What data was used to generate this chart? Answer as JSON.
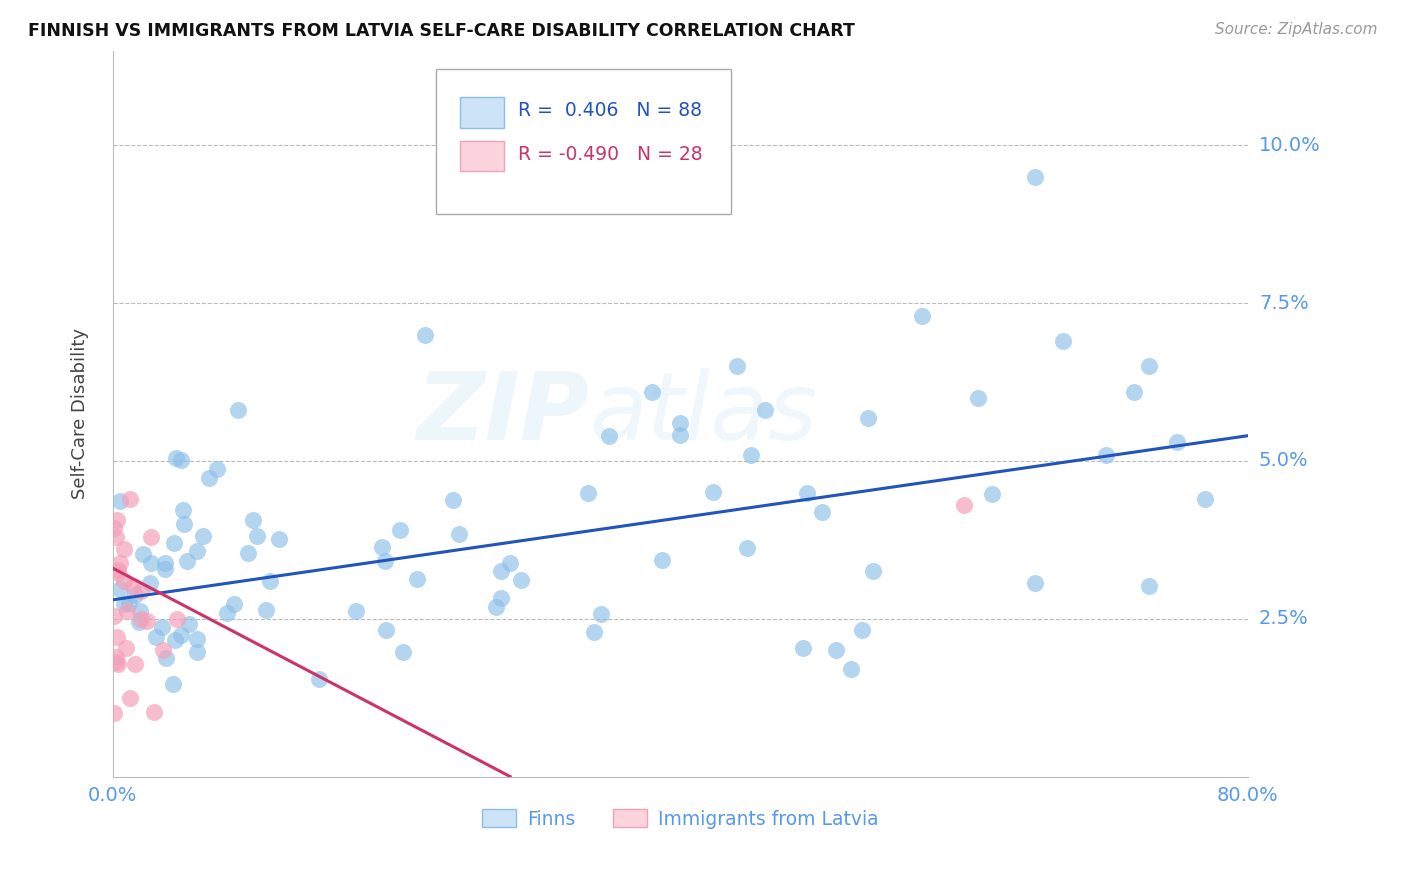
{
  "title": "FINNISH VS IMMIGRANTS FROM LATVIA SELF-CARE DISABILITY CORRELATION CHART",
  "source": "Source: ZipAtlas.com",
  "ylabel": "Self-Care Disability",
  "xlim": [
    0.0,
    0.8
  ],
  "ylim": [
    0.0,
    0.115
  ],
  "background_color": "#ffffff",
  "grid_color": "#bbbbbb",
  "finn_color": "#8bbfe8",
  "latvia_color": "#f4a0b8",
  "finn_line_color": "#2255bb",
  "latvia_line_color": "#cc3366",
  "legend_finn_R": "0.406",
  "legend_finn_N": "88",
  "legend_latvia_R": "-0.490",
  "legend_latvia_N": "28",
  "tick_color": "#5599ee",
  "finn_line_x": [
    0.0,
    0.8
  ],
  "finn_line_y": [
    0.028,
    0.054
  ],
  "latvia_line_x": [
    0.0,
    0.28
  ],
  "latvia_line_y": [
    0.033,
    0.0
  ]
}
